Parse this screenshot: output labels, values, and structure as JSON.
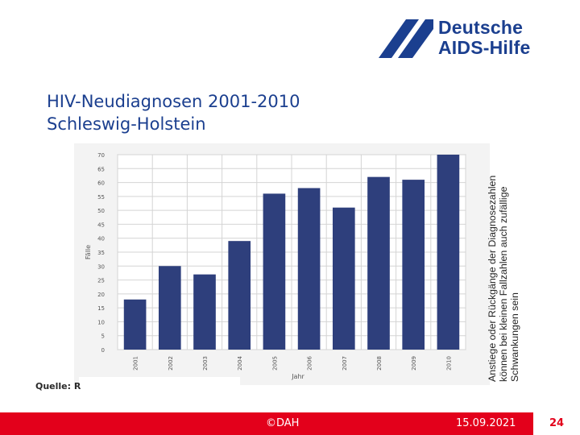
{
  "brand": {
    "line1": "Deutsche",
    "line2": "AIDS-Hilfe",
    "color": "#1b3f8f"
  },
  "slide": {
    "title_line1": "HIV-Neudiagnosen 2001-2010",
    "title_line2": "Schleswig-Holstein",
    "source_label": "Quelle: R",
    "side_note": "Anstiege oder Rückgänge der Diagnosezahlen können bei kleinen Fallzahlen auch zufällige Schwankungen sein"
  },
  "footer": {
    "copyright": "©DAH",
    "date": "15.09.2021",
    "page": "24",
    "accent": "#e3001b"
  },
  "chart_data": {
    "type": "bar",
    "title": "",
    "categories": [
      "2001",
      "2002",
      "2003",
      "2004",
      "2005",
      "2006",
      "2007",
      "2008",
      "2009",
      "2010"
    ],
    "values": [
      18,
      30,
      27,
      39,
      56,
      58,
      51,
      62,
      61,
      70
    ],
    "xlabel": "Jahr",
    "ylabel": "Fälle",
    "ylim": [
      0,
      70
    ],
    "yticks": [
      0,
      5,
      10,
      15,
      20,
      25,
      30,
      35,
      40,
      45,
      50,
      55,
      60,
      65,
      70
    ],
    "bar_color": "#2e3f7c",
    "grid": true
  }
}
